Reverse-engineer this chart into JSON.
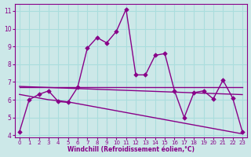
{
  "xlabel": "Windchill (Refroidissement éolien,°C)",
  "background_color": "#cce8e8",
  "grid_color": "#aadddd",
  "line_color": "#880088",
  "x": [
    0,
    1,
    2,
    3,
    4,
    5,
    6,
    7,
    8,
    9,
    10,
    11,
    12,
    13,
    14,
    15,
    16,
    17,
    18,
    19,
    20,
    21,
    22,
    23
  ],
  "y_main": [
    4.2,
    6.0,
    6.3,
    6.5,
    5.9,
    5.85,
    6.7,
    8.9,
    9.5,
    9.2,
    9.85,
    11.1,
    7.4,
    7.4,
    8.5,
    8.6,
    6.5,
    5.0,
    6.4,
    6.5,
    6.05,
    7.1,
    6.1,
    4.2
  ],
  "y_flat": [
    6.7,
    6.7,
    6.7,
    6.7,
    6.7,
    6.7,
    6.7,
    6.7,
    6.7,
    6.7,
    6.7,
    6.7,
    6.7,
    6.7,
    6.7,
    6.7,
    6.7,
    6.7,
    6.7,
    6.7,
    6.7,
    6.7,
    6.7,
    6.7
  ],
  "y_trend1": [
    6.75,
    6.73,
    6.71,
    6.69,
    6.67,
    6.65,
    6.63,
    6.61,
    6.59,
    6.57,
    6.55,
    6.53,
    6.51,
    6.49,
    6.47,
    6.45,
    6.43,
    6.41,
    6.39,
    6.37,
    6.35,
    6.33,
    6.31,
    6.29
  ],
  "y_trend2": [
    6.3,
    6.2,
    6.1,
    6.0,
    5.95,
    5.88,
    5.78,
    5.68,
    5.58,
    5.48,
    5.38,
    5.28,
    5.18,
    5.08,
    4.98,
    4.88,
    4.78,
    4.68,
    4.58,
    4.48,
    4.38,
    4.28,
    4.18,
    4.08
  ],
  "ylim": [
    4,
    11
  ],
  "xlim": [
    0,
    23
  ],
  "yticks": [
    4,
    5,
    6,
    7,
    8,
    9,
    10,
    11
  ],
  "xticks": [
    0,
    1,
    2,
    3,
    4,
    5,
    6,
    7,
    8,
    9,
    10,
    11,
    12,
    13,
    14,
    15,
    16,
    17,
    18,
    19,
    20,
    21,
    22,
    23
  ]
}
